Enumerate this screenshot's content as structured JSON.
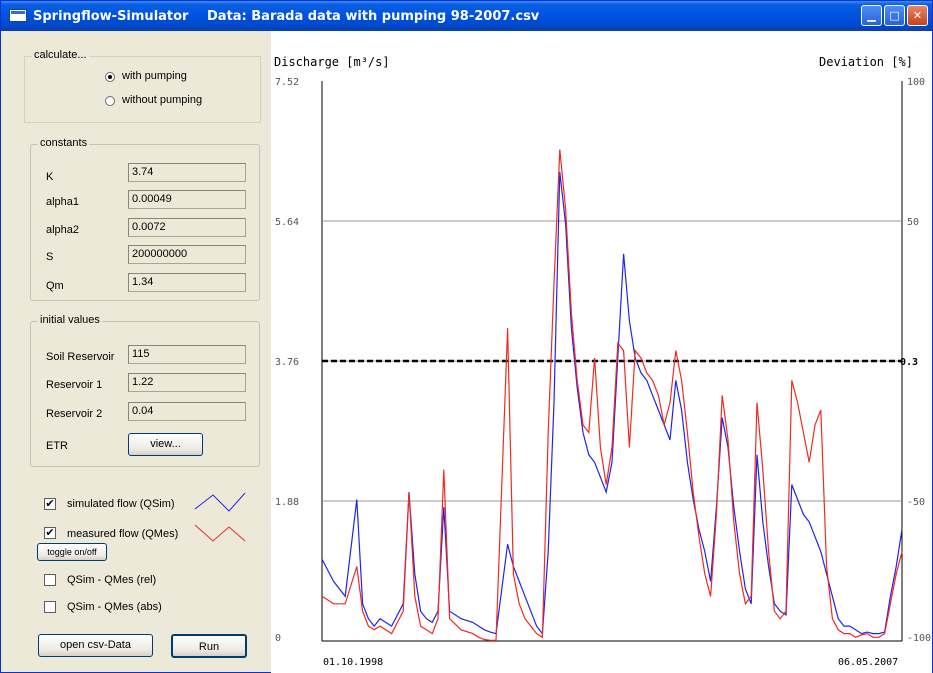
{
  "window": {
    "app_title": "Springflow-Simulator",
    "data_title": "Data: Barada data with pumping 98-2007.csv"
  },
  "calculate": {
    "label": "calculate...",
    "with_pumping": "with pumping",
    "without_pumping": "without pumping",
    "selected": "with pumping"
  },
  "constants": {
    "label": "constants",
    "items": [
      {
        "name": "K",
        "value": "3.74"
      },
      {
        "name": "alpha1",
        "value": "0.00049"
      },
      {
        "name": "alpha2",
        "value": "0.0072"
      },
      {
        "name": "S",
        "value": "200000000"
      },
      {
        "name": "Qm",
        "value": "1.34"
      }
    ]
  },
  "initial": {
    "label": "initial values",
    "items": [
      {
        "name": "Soil Reservoir",
        "value": "115"
      },
      {
        "name": "Reservoir 1",
        "value": "1.22"
      },
      {
        "name": "Reservoir 2",
        "value": "0.04"
      }
    ],
    "etr_label": "ETR",
    "etr_button": "view..."
  },
  "options": {
    "simulated": "simulated flow (QSim)",
    "measured": "measured flow (QMes)",
    "toggle": "toggle on/off",
    "rel": "QSim - QMes (rel)",
    "abs": "QSim - QMes (abs)",
    "simulated_checked": true,
    "measured_checked": true,
    "rel_checked": false,
    "abs_checked": false,
    "check_mark": "✔",
    "sim_color": "#1E24F0",
    "mes_color": "#F02A20"
  },
  "actions": {
    "open": "open csv-Data",
    "run": "Run"
  },
  "chart_data": {
    "type": "line",
    "ylabel_left": "Discharge [m³/s]",
    "ylabel_right": "Deviation [%]",
    "y_ticks_left": [
      "7.52",
      "5.64",
      "3.76",
      "1.88",
      "0"
    ],
    "y_ticks_right": [
      "100",
      "50",
      "0.3",
      "-50",
      "-100"
    ],
    "x_start": "01.10.1998",
    "x_end": "06.05.2007",
    "ylim": [
      0,
      7.52
    ],
    "grid": true,
    "deviation_line": 0.3,
    "x": [
      0,
      0.02,
      0.04,
      0.06,
      0.07,
      0.08,
      0.09,
      0.1,
      0.12,
      0.14,
      0.15,
      0.16,
      0.17,
      0.18,
      0.19,
      0.2,
      0.21,
      0.22,
      0.24,
      0.26,
      0.27,
      0.28,
      0.29,
      0.3,
      0.32,
      0.33,
      0.34,
      0.35,
      0.36,
      0.37,
      0.38,
      0.39,
      0.4,
      0.41,
      0.42,
      0.43,
      0.44,
      0.45,
      0.46,
      0.47,
      0.48,
      0.49,
      0.5,
      0.51,
      0.52,
      0.53,
      0.54,
      0.55,
      0.56,
      0.57,
      0.58,
      0.59,
      0.6,
      0.61,
      0.62,
      0.63,
      0.64,
      0.65,
      0.66,
      0.67,
      0.68,
      0.69,
      0.7,
      0.71,
      0.72,
      0.73,
      0.74,
      0.75,
      0.76,
      0.77,
      0.78,
      0.79,
      0.8,
      0.81,
      0.82,
      0.83,
      0.84,
      0.85,
      0.86,
      0.87,
      0.88,
      0.89,
      0.9,
      0.91,
      0.92,
      0.93,
      0.94,
      0.95,
      0.96,
      0.97,
      0.98,
      0.99,
      1.0
    ],
    "series": [
      {
        "name": "simulated flow (QSim)",
        "color": "#1E24F0",
        "values": [
          1.1,
          0.8,
          0.6,
          1.9,
          0.5,
          0.3,
          0.2,
          0.3,
          0.2,
          0.5,
          2.0,
          0.9,
          0.4,
          0.3,
          0.25,
          0.4,
          1.8,
          0.4,
          0.3,
          0.25,
          0.2,
          0.15,
          0.12,
          0.1,
          1.3,
          1.0,
          0.8,
          0.6,
          0.4,
          0.2,
          0.1,
          1.2,
          3.2,
          6.3,
          5.6,
          4.2,
          3.4,
          2.8,
          2.5,
          2.4,
          2.2,
          2.0,
          2.4,
          3.8,
          5.2,
          4.3,
          3.8,
          3.6,
          3.5,
          3.3,
          3.1,
          2.9,
          2.7,
          3.5,
          3.1,
          2.4,
          1.9,
          1.5,
          1.2,
          0.8,
          1.8,
          3.0,
          2.6,
          1.8,
          1.2,
          0.7,
          0.5,
          2.5,
          1.6,
          1.0,
          0.5,
          0.4,
          0.35,
          2.1,
          1.9,
          1.7,
          1.6,
          1.4,
          1.2,
          0.9,
          0.6,
          0.3,
          0.2,
          0.2,
          0.15,
          0.1,
          0.12,
          0.1,
          0.1,
          0.12,
          0.6,
          1.0,
          1.5
        ]
      },
      {
        "name": "measured flow (QMes)",
        "color": "#F02A20",
        "values": [
          0.6,
          0.5,
          0.5,
          1.0,
          0.4,
          0.2,
          0.15,
          0.2,
          0.1,
          0.4,
          2.0,
          0.6,
          0.2,
          0.15,
          0.1,
          0.3,
          2.3,
          0.3,
          0.15,
          0.1,
          0.05,
          0.02,
          0.01,
          0.01,
          4.2,
          0.9,
          0.5,
          0.3,
          0.2,
          0.1,
          0.05,
          2.8,
          4.8,
          6.6,
          5.8,
          4.4,
          3.5,
          2.9,
          2.8,
          3.8,
          2.6,
          2.1,
          2.6,
          4.0,
          3.9,
          2.6,
          3.9,
          3.8,
          3.6,
          3.5,
          3.3,
          2.9,
          3.2,
          3.9,
          3.5,
          2.8,
          2.0,
          1.4,
          0.9,
          0.6,
          1.7,
          3.3,
          2.7,
          1.6,
          0.9,
          0.5,
          0.6,
          3.2,
          2.3,
          1.2,
          0.4,
          0.3,
          0.4,
          3.5,
          3.2,
          2.8,
          2.4,
          2.9,
          3.1,
          1.0,
          0.3,
          0.15,
          0.1,
          0.1,
          0.05,
          0.08,
          0.1,
          0.05,
          0.05,
          0.1,
          0.5,
          0.9,
          1.2
        ]
      }
    ]
  }
}
